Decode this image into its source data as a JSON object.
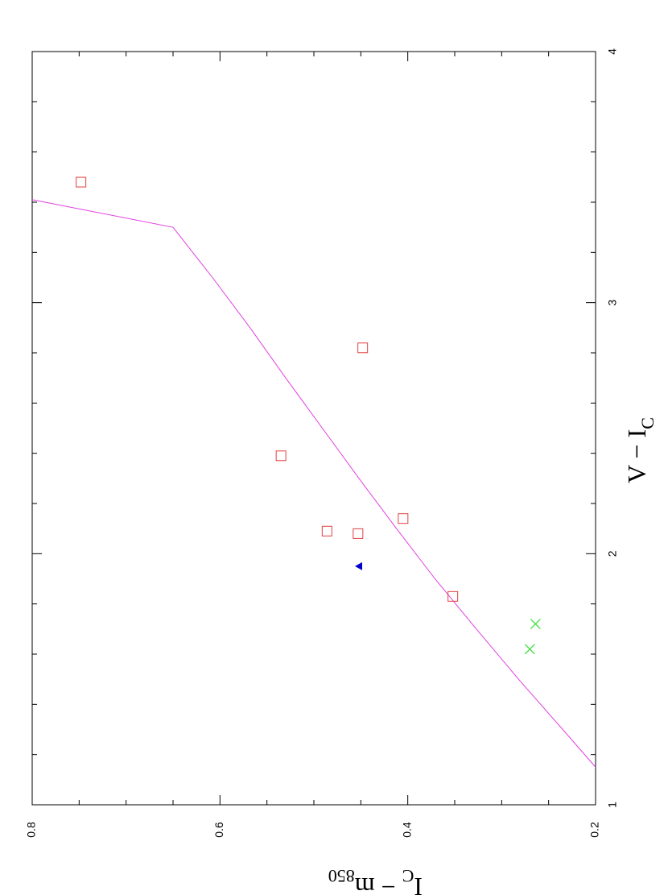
{
  "chart_data": {
    "type": "scatter",
    "orientation": "rotated-90-clockwise",
    "xlabel_main": "V − I",
    "xlabel_sub": "C",
    "ylabel_main": "I",
    "ylabel_sub": "C",
    "ylabel_mid": " − m",
    "ylabel_sub2": "850",
    "xlim": [
      1,
      4
    ],
    "ylim": [
      0.2,
      0.8
    ],
    "x_ticks": [
      1,
      2,
      3,
      4
    ],
    "x_tick_labels": [
      "1",
      "2",
      "3",
      "4"
    ],
    "y_ticks": [
      0.2,
      0.4,
      0.6,
      0.8
    ],
    "y_tick_labels": [
      "0.2",
      "0.4",
      "0.6",
      "0.8"
    ],
    "grid": false,
    "series": [
      {
        "marker": "open-square",
        "color": "#e04040",
        "points": [
          {
            "x": 3.48,
            "y": 0.748
          },
          {
            "x": 2.82,
            "y": 0.448
          },
          {
            "x": 2.39,
            "y": 0.535
          },
          {
            "x": 2.14,
            "y": 0.405
          },
          {
            "x": 2.09,
            "y": 0.486
          },
          {
            "x": 2.08,
            "y": 0.453
          },
          {
            "x": 1.83,
            "y": 0.352
          }
        ]
      },
      {
        "marker": "filled-triangle",
        "color": "#0000cc",
        "points": [
          {
            "x": 1.95,
            "y": 0.452
          }
        ]
      },
      {
        "marker": "cross",
        "color": "#33dd33",
        "points": [
          {
            "x": 1.72,
            "y": 0.264
          },
          {
            "x": 1.62,
            "y": 0.27
          }
        ]
      }
    ],
    "fit_curve": {
      "color": "#e040e0",
      "points": [
        {
          "x": 1.15,
          "y": 0.2
        },
        {
          "x": 1.3,
          "y": 0.235
        },
        {
          "x": 1.5,
          "y": 0.282
        },
        {
          "x": 1.7,
          "y": 0.327
        },
        {
          "x": 1.9,
          "y": 0.371
        },
        {
          "x": 2.1,
          "y": 0.412
        },
        {
          "x": 2.3,
          "y": 0.452
        },
        {
          "x": 2.5,
          "y": 0.491
        },
        {
          "x": 2.7,
          "y": 0.53
        },
        {
          "x": 2.9,
          "y": 0.568
        },
        {
          "x": 3.1,
          "y": 0.608
        },
        {
          "x": 3.3,
          "y": 0.65
        },
        {
          "x": 3.41,
          "y": 0.8
        }
      ]
    }
  }
}
